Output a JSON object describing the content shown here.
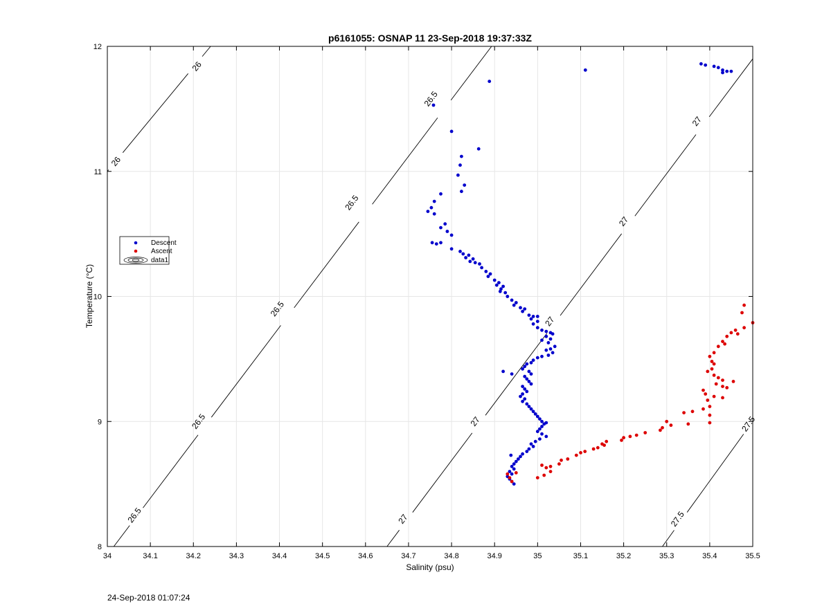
{
  "figure": {
    "footer_timestamp": "24-Sep-2018 01:07:24"
  },
  "chart_data": {
    "type": "scatter",
    "title": "p6161055: OSNAP 11 23-Sep-2018 19:37:33Z",
    "xlabel": "Salinity (psu)",
    "ylabel": "Temperature (°C)",
    "xlim": [
      34,
      35.5
    ],
    "ylim": [
      8,
      12
    ],
    "x_ticks": [
      "34",
      "34.1",
      "34.2",
      "34.3",
      "34.4",
      "34.5",
      "34.6",
      "34.7",
      "34.8",
      "34.9",
      "35",
      "35.1",
      "35.2",
      "35.3",
      "35.4",
      "35.5"
    ],
    "y_ticks": [
      "8",
      "9",
      "10",
      "11",
      "12"
    ],
    "grid": true,
    "legend_placement": "left",
    "legend": [
      {
        "label": "Descent",
        "kind": "marker",
        "color": "#0000cc"
      },
      {
        "label": "Ascent",
        "kind": "marker",
        "color": "#dd0000"
      },
      {
        "label": "data1",
        "kind": "contour"
      }
    ],
    "contours": [
      {
        "level": "26",
        "line": [
          [
            34.0,
            11.0
          ],
          [
            34.24,
            12.0
          ]
        ],
        "labels": [
          {
            "s": 34.02,
            "t": 11.08
          },
          {
            "s": 34.208,
            "t": 11.84
          }
        ]
      },
      {
        "level": "26.5",
        "line": [
          [
            34.015,
            8.0
          ],
          [
            34.893,
            12.0
          ]
        ],
        "labels": [
          {
            "s": 34.063,
            "t": 8.25
          },
          {
            "s": 34.212,
            "t": 9.0
          },
          {
            "s": 34.395,
            "t": 9.9
          },
          {
            "s": 34.568,
            "t": 10.75
          },
          {
            "s": 34.752,
            "t": 11.58
          }
        ]
      },
      {
        "level": "27",
        "line": [
          [
            34.65,
            8.0
          ],
          [
            35.5,
            11.9
          ]
        ],
        "labels": [
          {
            "s": 34.687,
            "t": 8.22
          },
          {
            "s": 34.855,
            "t": 9.0
          },
          {
            "s": 35.028,
            "t": 9.8
          },
          {
            "s": 35.2,
            "t": 10.6
          },
          {
            "s": 35.37,
            "t": 11.4
          }
        ]
      },
      {
        "level": "27.5",
        "line": [
          [
            35.29,
            8.0
          ],
          [
            35.5,
            9.0
          ]
        ],
        "labels": [
          {
            "s": 35.325,
            "t": 8.22
          },
          {
            "s": 35.49,
            "t": 8.98
          }
        ]
      }
    ],
    "series": [
      {
        "name": "Descent",
        "color": "#0000cc",
        "points": [
          [
            35.38,
            11.86
          ],
          [
            35.39,
            11.85
          ],
          [
            35.41,
            11.84
          ],
          [
            35.42,
            11.83
          ],
          [
            35.43,
            11.81
          ],
          [
            35.44,
            11.8
          ],
          [
            35.45,
            11.8
          ],
          [
            35.43,
            11.79
          ],
          [
            35.111,
            11.81
          ],
          [
            34.888,
            11.72
          ],
          [
            34.758,
            11.53
          ],
          [
            34.8,
            11.32
          ],
          [
            34.863,
            11.18
          ],
          [
            34.823,
            11.12
          ],
          [
            34.82,
            11.05
          ],
          [
            34.815,
            10.97
          ],
          [
            34.83,
            10.89
          ],
          [
            34.823,
            10.84
          ],
          [
            34.775,
            10.82
          ],
          [
            34.76,
            10.76
          ],
          [
            34.753,
            10.71
          ],
          [
            34.745,
            10.68
          ],
          [
            34.76,
            10.66
          ],
          [
            34.785,
            10.58
          ],
          [
            34.775,
            10.55
          ],
          [
            34.79,
            10.52
          ],
          [
            34.8,
            10.49
          ],
          [
            34.755,
            10.43
          ],
          [
            34.765,
            10.42
          ],
          [
            34.775,
            10.43
          ],
          [
            34.8,
            10.38
          ],
          [
            34.82,
            10.36
          ],
          [
            34.827,
            10.34
          ],
          [
            34.84,
            10.33
          ],
          [
            34.833,
            10.31
          ],
          [
            34.85,
            10.3
          ],
          [
            34.843,
            10.28
          ],
          [
            34.855,
            10.27
          ],
          [
            34.865,
            10.26
          ],
          [
            34.87,
            10.23
          ],
          [
            34.88,
            10.2
          ],
          [
            34.89,
            10.18
          ],
          [
            34.885,
            10.16
          ],
          [
            34.9,
            10.13
          ],
          [
            34.91,
            10.11
          ],
          [
            34.905,
            10.09
          ],
          [
            34.92,
            10.08
          ],
          [
            34.915,
            10.06
          ],
          [
            34.913,
            10.04
          ],
          [
            34.925,
            10.03
          ],
          [
            34.93,
            10.0
          ],
          [
            34.94,
            9.97
          ],
          [
            34.95,
            9.95
          ],
          [
            34.945,
            9.93
          ],
          [
            34.96,
            9.91
          ],
          [
            34.97,
            9.9
          ],
          [
            34.965,
            9.88
          ],
          [
            34.98,
            9.85
          ],
          [
            34.99,
            9.84
          ],
          [
            35.0,
            9.84
          ],
          [
            34.985,
            9.82
          ],
          [
            35.0,
            9.8
          ],
          [
            34.99,
            9.78
          ],
          [
            35.0,
            9.75
          ],
          [
            35.01,
            9.73
          ],
          [
            35.02,
            9.72
          ],
          [
            35.03,
            9.71
          ],
          [
            35.035,
            9.7
          ],
          [
            35.02,
            9.68
          ],
          [
            35.03,
            9.66
          ],
          [
            35.01,
            9.65
          ],
          [
            35.025,
            9.63
          ],
          [
            35.04,
            9.6
          ],
          [
            35.03,
            9.58
          ],
          [
            35.02,
            9.57
          ],
          [
            35.035,
            9.55
          ],
          [
            35.025,
            9.53
          ],
          [
            35.01,
            9.52
          ],
          [
            35.0,
            9.51
          ],
          [
            34.99,
            9.49
          ],
          [
            34.985,
            9.47
          ],
          [
            34.975,
            9.46
          ],
          [
            34.97,
            9.44
          ],
          [
            34.965,
            9.42
          ],
          [
            34.98,
            9.4
          ],
          [
            34.985,
            9.38
          ],
          [
            34.97,
            9.36
          ],
          [
            34.975,
            9.34
          ],
          [
            34.98,
            9.32
          ],
          [
            34.985,
            9.3
          ],
          [
            34.965,
            9.28
          ],
          [
            34.97,
            9.26
          ],
          [
            34.975,
            9.24
          ],
          [
            34.965,
            9.22
          ],
          [
            34.96,
            9.2
          ],
          [
            34.97,
            9.18
          ],
          [
            34.965,
            9.16
          ],
          [
            34.975,
            9.14
          ],
          [
            34.98,
            9.12
          ],
          [
            34.985,
            9.1
          ],
          [
            34.99,
            9.08
          ],
          [
            34.995,
            9.06
          ],
          [
            35.0,
            9.04
          ],
          [
            35.005,
            9.02
          ],
          [
            35.01,
            9.0
          ],
          [
            35.015,
            8.98
          ],
          [
            35.02,
            8.99
          ],
          [
            35.01,
            8.96
          ],
          [
            35.005,
            8.94
          ],
          [
            35.0,
            8.92
          ],
          [
            35.01,
            8.9
          ],
          [
            35.02,
            8.88
          ],
          [
            35.005,
            8.86
          ],
          [
            34.995,
            8.84
          ],
          [
            34.985,
            8.82
          ],
          [
            34.99,
            8.8
          ],
          [
            34.98,
            8.78
          ],
          [
            34.975,
            8.76
          ],
          [
            34.965,
            8.74
          ],
          [
            34.96,
            8.72
          ],
          [
            34.955,
            8.7
          ],
          [
            34.95,
            8.68
          ],
          [
            34.945,
            8.66
          ],
          [
            34.94,
            8.64
          ],
          [
            34.945,
            8.62
          ],
          [
            34.935,
            8.6
          ],
          [
            34.94,
            8.58
          ],
          [
            34.93,
            8.56
          ],
          [
            34.935,
            8.54
          ],
          [
            34.94,
            8.52
          ],
          [
            34.945,
            8.5
          ],
          [
            34.938,
            8.73
          ],
          [
            34.92,
            9.4
          ],
          [
            34.94,
            9.38
          ]
        ]
      },
      {
        "name": "Ascent",
        "color": "#dd0000",
        "points": [
          [
            35.48,
            9.93
          ],
          [
            35.475,
            9.87
          ],
          [
            35.5,
            9.79
          ],
          [
            35.48,
            9.75
          ],
          [
            35.46,
            9.73
          ],
          [
            35.465,
            9.7
          ],
          [
            35.45,
            9.71
          ],
          [
            35.44,
            9.68
          ],
          [
            35.43,
            9.64
          ],
          [
            35.435,
            9.62
          ],
          [
            35.42,
            9.6
          ],
          [
            35.41,
            9.55
          ],
          [
            35.4,
            9.52
          ],
          [
            35.405,
            9.48
          ],
          [
            35.41,
            9.46
          ],
          [
            35.405,
            9.42
          ],
          [
            35.395,
            9.4
          ],
          [
            35.41,
            9.37
          ],
          [
            35.42,
            9.35
          ],
          [
            35.43,
            9.33
          ],
          [
            35.455,
            9.32
          ],
          [
            35.415,
            9.3
          ],
          [
            35.43,
            9.28
          ],
          [
            35.44,
            9.27
          ],
          [
            35.385,
            9.25
          ],
          [
            35.39,
            9.22
          ],
          [
            35.41,
            9.2
          ],
          [
            35.43,
            9.19
          ],
          [
            35.395,
            9.17
          ],
          [
            35.4,
            9.12
          ],
          [
            35.385,
            9.1
          ],
          [
            35.36,
            9.08
          ],
          [
            35.34,
            9.07
          ],
          [
            35.4,
            9.05
          ],
          [
            35.4,
            8.99
          ],
          [
            35.35,
            8.98
          ],
          [
            35.3,
            9.0
          ],
          [
            35.31,
            8.97
          ],
          [
            35.29,
            8.95
          ],
          [
            35.285,
            8.93
          ],
          [
            35.25,
            8.91
          ],
          [
            35.23,
            8.89
          ],
          [
            35.215,
            8.88
          ],
          [
            35.2,
            8.87
          ],
          [
            35.195,
            8.85
          ],
          [
            35.16,
            8.84
          ],
          [
            35.15,
            8.82
          ],
          [
            35.155,
            8.81
          ],
          [
            35.14,
            8.79
          ],
          [
            35.13,
            8.78
          ],
          [
            35.11,
            8.76
          ],
          [
            35.1,
            8.75
          ],
          [
            35.09,
            8.73
          ],
          [
            35.07,
            8.7
          ],
          [
            35.055,
            8.69
          ],
          [
            35.05,
            8.66
          ],
          [
            35.03,
            8.64
          ],
          [
            35.02,
            8.63
          ],
          [
            35.01,
            8.65
          ],
          [
            35.03,
            8.6
          ],
          [
            35.015,
            8.57
          ],
          [
            35.0,
            8.55
          ],
          [
            34.95,
            8.59
          ],
          [
            34.93,
            8.58
          ],
          [
            34.935,
            8.55
          ],
          [
            34.94,
            8.52
          ]
        ]
      }
    ]
  }
}
